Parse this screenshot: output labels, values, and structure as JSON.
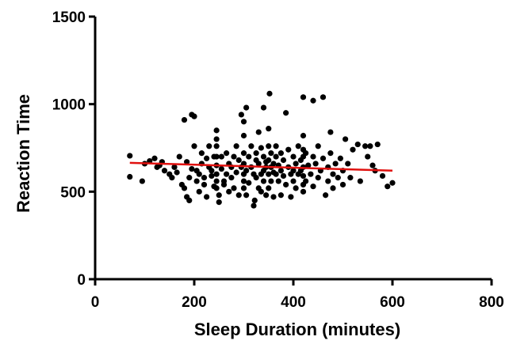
{
  "chart_data": {
    "type": "scatter",
    "title": "",
    "xlabel": "Sleep Duration (minutes)",
    "ylabel": "Reaction Time",
    "xlim": [
      0,
      800
    ],
    "ylim": [
      0,
      1500
    ],
    "x_ticks": [
      0,
      200,
      400,
      600,
      800
    ],
    "y_ticks": [
      0,
      500,
      1000,
      1500
    ],
    "x_tick_labels": [
      "0",
      "200",
      "400",
      "600",
      "800"
    ],
    "y_tick_labels": [
      "0",
      "500",
      "1000",
      "1500"
    ],
    "grid": false,
    "legend": "none",
    "colors": {
      "points": "#000000",
      "fit_line": "#e0110f",
      "axes": "#000000"
    },
    "series": [
      {
        "points": [
          [
            70,
            705
          ],
          [
            70,
            585
          ],
          [
            95,
            560
          ],
          [
            100,
            660
          ],
          [
            110,
            675
          ],
          [
            120,
            690
          ],
          [
            125,
            640
          ],
          [
            130,
            650
          ],
          [
            135,
            670
          ],
          [
            140,
            620
          ],
          [
            150,
            600
          ],
          [
            155,
            580
          ],
          [
            160,
            640
          ],
          [
            165,
            610
          ],
          [
            170,
            700
          ],
          [
            175,
            540
          ],
          [
            180,
            520
          ],
          [
            180,
            910
          ],
          [
            185,
            670
          ],
          [
            185,
            470
          ],
          [
            190,
            580
          ],
          [
            190,
            450
          ],
          [
            195,
            630
          ],
          [
            195,
            940
          ],
          [
            200,
            930
          ],
          [
            200,
            760
          ],
          [
            205,
            620
          ],
          [
            205,
            560
          ],
          [
            210,
            600
          ],
          [
            210,
            500
          ],
          [
            215,
            720
          ],
          [
            215,
            660
          ],
          [
            220,
            540
          ],
          [
            220,
            580
          ],
          [
            225,
            690
          ],
          [
            225,
            470
          ],
          [
            230,
            640
          ],
          [
            230,
            760
          ],
          [
            235,
            620
          ],
          [
            235,
            590
          ],
          [
            240,
            700
          ],
          [
            240,
            530
          ],
          [
            245,
            850
          ],
          [
            245,
            800
          ],
          [
            245,
            760
          ],
          [
            245,
            700
          ],
          [
            245,
            650
          ],
          [
            245,
            600
          ],
          [
            245,
            560
          ],
          [
            245,
            520
          ],
          [
            250,
            480
          ],
          [
            250,
            440
          ],
          [
            255,
            630
          ],
          [
            255,
            700
          ],
          [
            260,
            560
          ],
          [
            260,
            540
          ],
          [
            265,
            720
          ],
          [
            265,
            600
          ],
          [
            270,
            660
          ],
          [
            270,
            500
          ],
          [
            275,
            640
          ],
          [
            275,
            580
          ],
          [
            280,
            700
          ],
          [
            280,
            520
          ],
          [
            285,
            610
          ],
          [
            285,
            760
          ],
          [
            290,
            680
          ],
          [
            290,
            480
          ],
          [
            295,
            640
          ],
          [
            295,
            940
          ],
          [
            300,
            900
          ],
          [
            300,
            820
          ],
          [
            300,
            720
          ],
          [
            300,
            660
          ],
          [
            300,
            600
          ],
          [
            300,
            560
          ],
          [
            300,
            520
          ],
          [
            305,
            980
          ],
          [
            305,
            620
          ],
          [
            305,
            480
          ],
          [
            310,
            700
          ],
          [
            310,
            550
          ],
          [
            315,
            760
          ],
          [
            315,
            640
          ],
          [
            320,
            420
          ],
          [
            320,
            600
          ],
          [
            322,
            450
          ],
          [
            325,
            720
          ],
          [
            325,
            580
          ],
          [
            325,
            680
          ],
          [
            330,
            840
          ],
          [
            330,
            660
          ],
          [
            330,
            520
          ],
          [
            335,
            750
          ],
          [
            335,
            600
          ],
          [
            335,
            500
          ],
          [
            340,
            980
          ],
          [
            340,
            700
          ],
          [
            340,
            620
          ],
          [
            340,
            560
          ],
          [
            345,
            670
          ],
          [
            345,
            640
          ],
          [
            345,
            480
          ],
          [
            350,
            860
          ],
          [
            350,
            760
          ],
          [
            350,
            680
          ],
          [
            350,
            600
          ],
          [
            350,
            520
          ],
          [
            352,
            1060
          ],
          [
            355,
            720
          ],
          [
            355,
            640
          ],
          [
            355,
            560
          ],
          [
            360,
            660
          ],
          [
            360,
            610
          ],
          [
            360,
            470
          ],
          [
            365,
            760
          ],
          [
            365,
            700
          ],
          [
            365,
            600
          ],
          [
            370,
            650
          ],
          [
            370,
            560
          ],
          [
            375,
            720
          ],
          [
            375,
            620
          ],
          [
            375,
            480
          ],
          [
            380,
            680
          ],
          [
            380,
            590
          ],
          [
            385,
            540
          ],
          [
            385,
            950
          ],
          [
            390,
            640
          ],
          [
            390,
            740
          ],
          [
            395,
            600
          ],
          [
            395,
            470
          ],
          [
            400,
            700
          ],
          [
            400,
            620
          ],
          [
            400,
            560
          ],
          [
            405,
            660
          ],
          [
            405,
            520
          ],
          [
            410,
            600
          ],
          [
            410,
            760
          ],
          [
            415,
            620
          ],
          [
            415,
            680
          ],
          [
            420,
            1040
          ],
          [
            420,
            820
          ],
          [
            420,
            740
          ],
          [
            420,
            700
          ],
          [
            420,
            640
          ],
          [
            420,
            590
          ],
          [
            420,
            540
          ],
          [
            420,
            500
          ],
          [
            425,
            720
          ],
          [
            425,
            560
          ],
          [
            430,
            650
          ],
          [
            435,
            600
          ],
          [
            440,
            1020
          ],
          [
            440,
            700
          ],
          [
            440,
            530
          ],
          [
            445,
            660
          ],
          [
            450,
            760
          ],
          [
            450,
            580
          ],
          [
            455,
            620
          ],
          [
            460,
            1040
          ],
          [
            460,
            690
          ],
          [
            465,
            480
          ],
          [
            470,
            640
          ],
          [
            470,
            560
          ],
          [
            475,
            840
          ],
          [
            475,
            720
          ],
          [
            480,
            600
          ],
          [
            480,
            520
          ],
          [
            485,
            660
          ],
          [
            490,
            580
          ],
          [
            495,
            690
          ],
          [
            500,
            620
          ],
          [
            500,
            540
          ],
          [
            505,
            800
          ],
          [
            510,
            660
          ],
          [
            515,
            580
          ],
          [
            520,
            740
          ],
          [
            530,
            770
          ],
          [
            535,
            560
          ],
          [
            545,
            760
          ],
          [
            550,
            700
          ],
          [
            555,
            760
          ],
          [
            560,
            650
          ],
          [
            565,
            620
          ],
          [
            570,
            770
          ],
          [
            580,
            590
          ],
          [
            590,
            530
          ],
          [
            600,
            550
          ]
        ]
      }
    ],
    "fit_line": {
      "x": [
        70,
        600
      ],
      "y": [
        665,
        620
      ]
    }
  }
}
